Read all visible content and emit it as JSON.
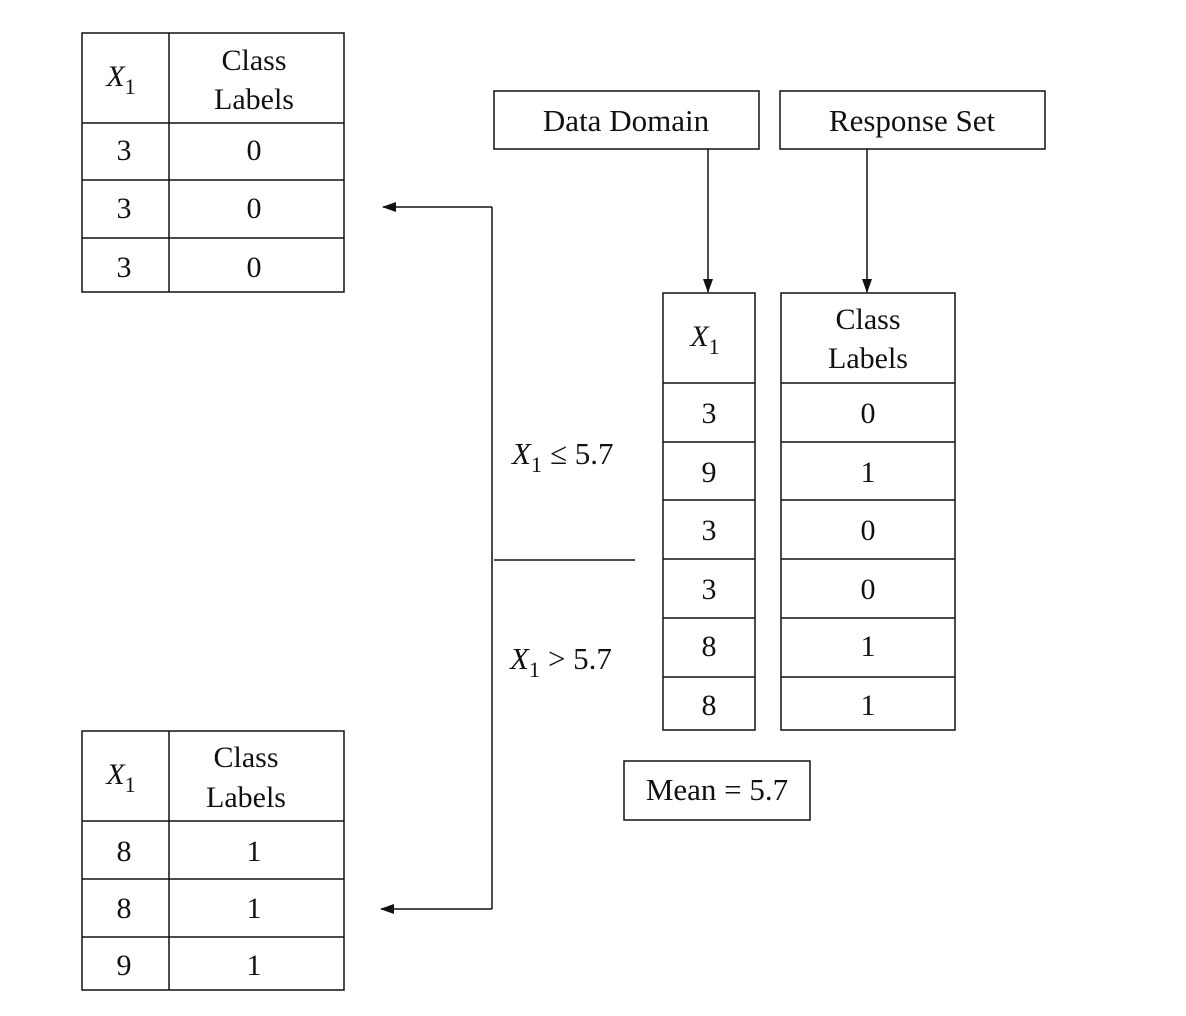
{
  "data_domain_label": "Data Domain",
  "response_set_label": "Response Set",
  "mean_label": "Mean = 5.7",
  "var_letter": "X",
  "var_subscript": "1",
  "class_header_line1": "Class",
  "class_header_line2": "Labels",
  "split": {
    "left_op": "≤ 5.7",
    "right_op": "> 5.7"
  },
  "root_table": {
    "x_values": [
      "3",
      "9",
      "3",
      "3",
      "8",
      "8"
    ],
    "labels": [
      "0",
      "1",
      "0",
      "0",
      "1",
      "1"
    ]
  },
  "left_child_table": {
    "x_values": [
      "3",
      "3",
      "3"
    ],
    "labels": [
      "0",
      "0",
      "0"
    ]
  },
  "right_child_table": {
    "x_values": [
      "8",
      "8",
      "9"
    ],
    "labels": [
      "1",
      "1",
      "1"
    ]
  }
}
